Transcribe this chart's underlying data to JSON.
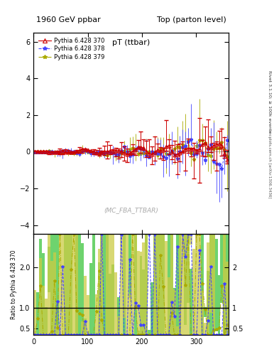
{
  "title_left": "1960 GeV ppbar",
  "title_right": "Top (parton level)",
  "plot_title": "pT (ttbar)",
  "watermark": "(MC_FBA_TTBAR)",
  "right_label": "Rivet 3.1.10; ≥ 100k events",
  "arxiv_label": "[arXiv:1306.3436]",
  "mcplots_label": "mcplots.cern.ch",
  "ylabel_ratio": "Ratio to Pythia 6.428 370",
  "ylim_main": [
    -4.5,
    6.5
  ],
  "ylim_ratio": [
    0.35,
    2.8
  ],
  "xlim": [
    0,
    360
  ],
  "main_yticks": [
    -4,
    -2,
    0,
    2,
    4,
    6
  ],
  "ratio_yticks": [
    0.5,
    1,
    2
  ],
  "xticks": [
    0,
    100,
    200,
    300
  ],
  "legend_entries": [
    {
      "label": "Pythia 6.428 370",
      "color": "#cc0000",
      "marker": "^",
      "ls": "-"
    },
    {
      "label": "Pythia 6.428 378",
      "color": "#4444ff",
      "marker": "*",
      "ls": "--"
    },
    {
      "label": "Pythia 6.428 379",
      "color": "#aaaa00",
      "marker": "*",
      "ls": "-."
    }
  ],
  "series1_color": "#cc0000",
  "series2_color": "#4444ff",
  "series3_color": "#aaaa00",
  "band1_color": "#55cc55",
  "band2_color": "#cccc44",
  "bg_color": "#ffffff"
}
